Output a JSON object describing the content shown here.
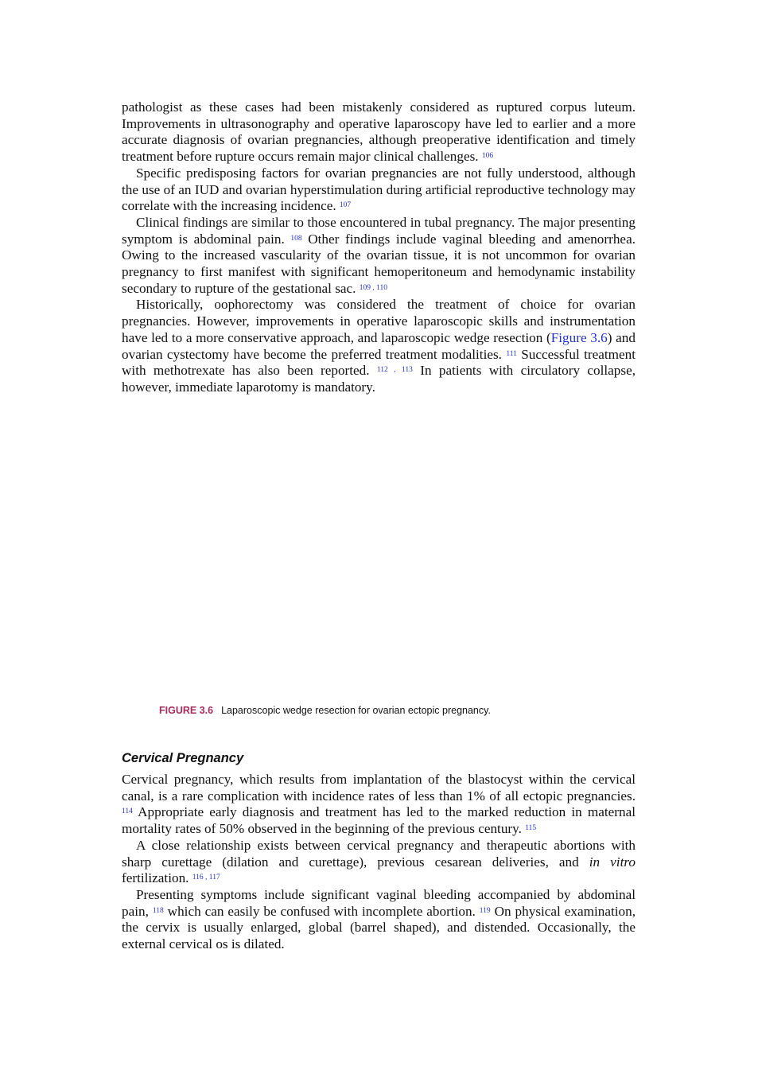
{
  "section1": {
    "paragraphs": [
      [
        {
          "text": "pathologist as these cases had been mistakenly considered as ruptured corpus luteum. Improvements in ultrasonography and operative laparoscopy have led to earlier and a more accurate diagnosis of ovarian pregnancies, although preoperative identification and timely treatment before rupture occurs remain major clinical challenges. ",
          "sup": "106"
        }
      ],
      [
        {
          "text": "Specific predisposing factors for ovarian pregnancies are not fully understood, although the use of an IUD and ovarian hyperstimulation during artificial reproductive technology may correlate with the increasing incidence. ",
          "sup": "107"
        }
      ],
      [
        {
          "text": "Clinical findings are similar to those encountered in tubal pregnancy. The major presenting symptom is abdominal pain. ",
          "sup": "108"
        },
        {
          "text": " Other findings include vaginal bleeding and amenorrhea. Owing to the increased vascularity of the ovarian tissue, it is not uncommon for ovarian pregnancy to first manifest with significant hemoperitoneum and hemodynamic instability secondary to rupture of the gestational sac. ",
          "sup": "109 , 110"
        }
      ],
      [
        {
          "text": "Historically, oophorectomy was considered the treatment of choice for ovarian pregnancies. However, improvements in operative laparoscopic skills and instrumentation have led to a more conservative approach, and laparoscopic wedge resection (",
          "link": "Figure 3.6"
        },
        {
          "text": ") and ovarian cystectomy have become the preferred treatment modalities. ",
          "sup": "111"
        },
        {
          "text": " Successful treatment with methotrexate has also been reported. ",
          "sup": "112 , 113"
        },
        {
          "text": " In patients with circulatory collapse, however, immediate laparotomy is mandatory."
        }
      ]
    ]
  },
  "figure": {
    "label": "FIGURE 3.6",
    "caption": "Laparoscopic wedge resection for ovarian ectopic pregnancy."
  },
  "section2": {
    "heading": "Cervical Pregnancy",
    "paragraphs": [
      [
        {
          "text": "Cervical pregnancy, which results from implantation of the blastocyst within the cervical canal, is a rare complication with incidence rates of less than 1% of all ectopic pregnancies. ",
          "sup": "114"
        },
        {
          "text": " Appropriate early diagnosis and treatment has led to the marked reduction in maternal mortality rates of 50% observed in the beginning of the previous century. ",
          "sup": "115"
        }
      ],
      [
        {
          "text": "A close relationship exists between cervical pregnancy and therapeutic abortions with sharp curettage (dilation and curettage), previous cesarean deliveries, and ",
          "italic": "in vitro"
        },
        {
          "text": " fertilization. ",
          "sup": "116 , 117"
        }
      ],
      [
        {
          "text": "Presenting symptoms include significant vaginal bleeding accompanied by abdominal pain, ",
          "sup": "118"
        },
        {
          "text": " which can easily be confused with incomplete abortion. ",
          "sup": "119"
        },
        {
          "text": " On physical examination, the cervix is usually enlarged, global (barrel shaped), and distended. Occasionally, the external cervical os is dilated."
        }
      ]
    ]
  }
}
